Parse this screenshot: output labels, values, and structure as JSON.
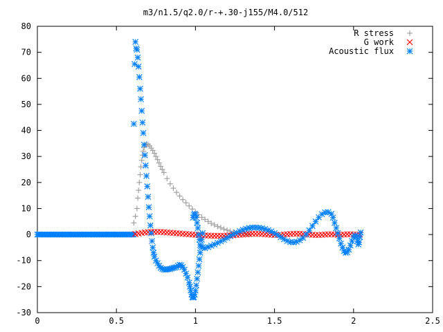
{
  "chart_data": {
    "type": "scatter",
    "title": "m3/n1.5/q2.0/r-+.30-j155/M4.0/512",
    "xlim": [
      0,
      2.5
    ],
    "ylim": [
      -30,
      80
    ],
    "xticks": [
      0,
      0.5,
      1,
      1.5,
      2,
      2.5
    ],
    "yticks": [
      -30,
      -20,
      -10,
      0,
      10,
      20,
      30,
      40,
      50,
      60,
      70,
      80
    ],
    "xtick_labels": [
      "0",
      "0.5",
      "1",
      "1.5",
      "2",
      "2.5"
    ],
    "ytick_labels": [
      "-30",
      "-20",
      "-10",
      "0",
      "10",
      "20",
      "30",
      "40",
      "50",
      "60",
      "70",
      "80"
    ],
    "grid": false,
    "legend_position": "top-right",
    "series": [
      {
        "name": "R stress",
        "marker": "plus",
        "color": "#a0a0a0",
        "points": [
          [
            0.61,
            4.5
          ],
          [
            0.62,
            7
          ],
          [
            0.63,
            10
          ],
          [
            0.635,
            14
          ],
          [
            0.64,
            17
          ],
          [
            0.645,
            20
          ],
          [
            0.65,
            23
          ],
          [
            0.655,
            26
          ],
          [
            0.66,
            28.5
          ],
          [
            0.665,
            30.5
          ],
          [
            0.67,
            32
          ],
          [
            0.675,
            33.5
          ],
          [
            0.68,
            34.3
          ],
          [
            0.69,
            34.8
          ],
          [
            0.7,
            34.6
          ],
          [
            0.71,
            34.0
          ],
          [
            0.72,
            33.2
          ],
          [
            0.73,
            32.3
          ],
          [
            0.74,
            31.2
          ],
          [
            0.75,
            30.0
          ],
          [
            0.76,
            28.8
          ],
          [
            0.77,
            27.5
          ],
          [
            0.78,
            26.2
          ],
          [
            0.79,
            25.0
          ],
          [
            0.8,
            23.8
          ],
          [
            0.82,
            21.5
          ],
          [
            0.84,
            19.5
          ],
          [
            0.86,
            17.8
          ],
          [
            0.88,
            16.2
          ],
          [
            0.9,
            14.8
          ],
          [
            0.92,
            13.4
          ],
          [
            0.94,
            12.2
          ],
          [
            0.96,
            11.0
          ],
          [
            0.98,
            9.8
          ],
          [
            1.0,
            8.6
          ],
          [
            1.02,
            7.6
          ],
          [
            1.04,
            6.6
          ],
          [
            1.06,
            5.8
          ],
          [
            1.08,
            5.0
          ],
          [
            1.1,
            4.3
          ],
          [
            1.12,
            3.7
          ],
          [
            1.14,
            3.1
          ],
          [
            1.16,
            2.6
          ],
          [
            1.18,
            2.1
          ],
          [
            1.2,
            1.7
          ],
          [
            1.22,
            1.3
          ],
          [
            1.24,
            1.0
          ],
          [
            1.26,
            0.7
          ],
          [
            1.28,
            0.5
          ],
          [
            1.3,
            0.3
          ],
          [
            1.32,
            0.2
          ],
          [
            1.34,
            0.1
          ]
        ]
      },
      {
        "name": "G work",
        "marker": "cross",
        "color": "#ff0000",
        "points": [
          [
            0.62,
            0.2
          ],
          [
            0.64,
            0.4
          ],
          [
            0.66,
            0.6
          ],
          [
            0.68,
            0.8
          ],
          [
            0.7,
            0.9
          ],
          [
            0.72,
            1.0
          ],
          [
            0.74,
            1.0
          ],
          [
            0.76,
            1.0
          ],
          [
            0.78,
            1.0
          ],
          [
            0.8,
            0.9
          ],
          [
            0.82,
            0.8
          ],
          [
            0.84,
            0.7
          ],
          [
            0.86,
            0.6
          ],
          [
            0.88,
            0.5
          ],
          [
            0.9,
            0.4
          ],
          [
            0.92,
            0.3
          ],
          [
            0.94,
            0.2
          ],
          [
            0.96,
            0.1
          ],
          [
            0.98,
            0.0
          ],
          [
            1.0,
            -0.1
          ],
          [
            1.02,
            -0.2
          ],
          [
            1.04,
            -0.3
          ],
          [
            1.06,
            -0.35
          ],
          [
            1.08,
            -0.4
          ],
          [
            1.1,
            -0.45
          ],
          [
            1.12,
            -0.5
          ],
          [
            1.14,
            -0.5
          ],
          [
            1.16,
            -0.5
          ],
          [
            1.18,
            -0.45
          ],
          [
            1.2,
            -0.4
          ],
          [
            1.22,
            -0.35
          ],
          [
            1.24,
            -0.3
          ],
          [
            1.26,
            -0.2
          ],
          [
            1.28,
            -0.1
          ],
          [
            1.3,
            0.0
          ],
          [
            1.32,
            0.1
          ],
          [
            1.34,
            0.2
          ],
          [
            1.36,
            0.3
          ],
          [
            1.38,
            0.3
          ],
          [
            1.4,
            0.3
          ],
          [
            1.42,
            0.2
          ],
          [
            1.44,
            0.1
          ],
          [
            1.46,
            0.0
          ],
          [
            1.48,
            -0.1
          ],
          [
            1.5,
            -0.2
          ],
          [
            1.52,
            -0.2
          ],
          [
            1.54,
            -0.1
          ],
          [
            1.56,
            0.0
          ],
          [
            1.58,
            0.1
          ],
          [
            1.6,
            0.2
          ],
          [
            1.62,
            0.3
          ],
          [
            1.64,
            0.3
          ],
          [
            1.66,
            0.3
          ],
          [
            1.68,
            0.2
          ],
          [
            1.7,
            0.1
          ],
          [
            1.72,
            0.0
          ],
          [
            1.74,
            -0.1
          ],
          [
            1.76,
            -0.2
          ],
          [
            1.78,
            -0.2
          ],
          [
            1.8,
            -0.1
          ],
          [
            1.82,
            0.0
          ],
          [
            1.84,
            0.1
          ],
          [
            1.86,
            0.1
          ],
          [
            1.88,
            0.0
          ],
          [
            1.9,
            -0.1
          ],
          [
            1.92,
            -0.1
          ],
          [
            1.94,
            0.0
          ],
          [
            1.96,
            0.1
          ],
          [
            1.98,
            0.1
          ],
          [
            2.0,
            0.0
          ],
          [
            2.02,
            0.0
          ],
          [
            2.04,
            0.0
          ]
        ]
      },
      {
        "name": "Acoustic flux",
        "marker": "star",
        "color": "#0080ff",
        "points": [
          [
            0.61,
            42.5
          ],
          [
            0.615,
            65.5
          ],
          [
            0.62,
            74.0
          ],
          [
            0.625,
            71.5
          ],
          [
            0.63,
            71.0
          ],
          [
            0.635,
            68.0
          ],
          [
            0.64,
            64.5
          ],
          [
            0.645,
            60.5
          ],
          [
            0.65,
            56.0
          ],
          [
            0.655,
            52.0
          ],
          [
            0.66,
            47.5
          ],
          [
            0.665,
            43.0
          ],
          [
            0.67,
            39.0
          ],
          [
            0.675,
            34.5
          ],
          [
            0.68,
            30.5
          ],
          [
            0.685,
            26.5
          ],
          [
            0.69,
            22.5
          ],
          [
            0.695,
            18.5
          ],
          [
            0.7,
            14.5
          ],
          [
            0.705,
            10.5
          ],
          [
            0.71,
            7.0
          ],
          [
            0.715,
            3.5
          ],
          [
            0.72,
            0.5
          ],
          [
            0.725,
            -2.5
          ],
          [
            0.73,
            -5.0
          ],
          [
            0.735,
            -7.0
          ],
          [
            0.74,
            -8.5
          ],
          [
            0.75,
            -10.0
          ],
          [
            0.76,
            -11.0
          ],
          [
            0.77,
            -12.0
          ],
          [
            0.78,
            -12.8
          ],
          [
            0.79,
            -13.2
          ],
          [
            0.8,
            -13.4
          ],
          [
            0.81,
            -13.5
          ],
          [
            0.82,
            -13.4
          ],
          [
            0.83,
            -13.3
          ],
          [
            0.84,
            -13.2
          ],
          [
            0.85,
            -13.0
          ],
          [
            0.86,
            -12.8
          ],
          [
            0.87,
            -12.7
          ],
          [
            0.88,
            -12.5
          ],
          [
            0.89,
            -12.0
          ],
          [
            0.9,
            -11.6
          ],
          [
            0.91,
            -11.8
          ],
          [
            0.92,
            -12.5
          ],
          [
            0.93,
            -13.5
          ],
          [
            0.94,
            -15.0
          ],
          [
            0.95,
            -16.5
          ],
          [
            0.96,
            -18.5
          ],
          [
            0.965,
            -20.0
          ],
          [
            0.97,
            -21.5
          ],
          [
            0.975,
            -23.0
          ],
          [
            0.98,
            -24.0
          ],
          [
            0.985,
            -24.2
          ],
          [
            0.99,
            -24.0
          ],
          [
            0.995,
            -23.0
          ],
          [
            1.0,
            -21.5
          ],
          [
            1.005,
            -19.5
          ],
          [
            1.01,
            -17.0
          ],
          [
            1.015,
            -14.5
          ],
          [
            1.02,
            -12.0
          ],
          [
            1.025,
            -9.5
          ],
          [
            1.03,
            -7.0
          ],
          [
            1.035,
            -4.5
          ],
          [
            1.04,
            -2.0
          ],
          [
            1.045,
            0.5
          ],
          [
            0.985,
            6.5
          ],
          [
            0.99,
            7.5
          ],
          [
            0.995,
            8.0
          ],
          [
            1.0,
            7.5
          ],
          [
            1.005,
            6.5
          ],
          [
            1.01,
            4.5
          ],
          [
            1.015,
            2.5
          ],
          [
            1.02,
            0.0
          ],
          [
            1.025,
            -2.0
          ],
          [
            1.03,
            -4.0
          ],
          [
            1.04,
            -5.0
          ],
          [
            1.06,
            -5.2
          ],
          [
            1.08,
            -4.8
          ],
          [
            1.1,
            -4.3
          ],
          [
            1.12,
            -3.8
          ],
          [
            1.14,
            -3.2
          ],
          [
            1.16,
            -2.6
          ],
          [
            1.18,
            -2.0
          ],
          [
            1.2,
            -1.3
          ],
          [
            1.22,
            -0.6
          ],
          [
            1.24,
            0.1
          ],
          [
            1.26,
            0.7
          ],
          [
            1.28,
            1.3
          ],
          [
            1.3,
            1.8
          ],
          [
            1.32,
            2.2
          ],
          [
            1.34,
            2.5
          ],
          [
            1.36,
            2.7
          ],
          [
            1.38,
            2.7
          ],
          [
            1.4,
            2.6
          ],
          [
            1.42,
            2.4
          ],
          [
            1.44,
            2.1
          ],
          [
            1.46,
            1.7
          ],
          [
            1.48,
            1.2
          ],
          [
            1.5,
            0.5
          ],
          [
            1.52,
            -0.2
          ],
          [
            1.54,
            -1.0
          ],
          [
            1.56,
            -1.8
          ],
          [
            1.58,
            -2.5
          ],
          [
            1.6,
            -2.9
          ],
          [
            1.62,
            -3.0
          ],
          [
            1.64,
            -2.8
          ],
          [
            1.66,
            -2.2
          ],
          [
            1.68,
            -1.3
          ],
          [
            1.7,
            0.0
          ],
          [
            1.72,
            1.6
          ],
          [
            1.74,
            3.3
          ],
          [
            1.76,
            5.0
          ],
          [
            1.78,
            6.6
          ],
          [
            1.8,
            7.8
          ],
          [
            1.82,
            8.5
          ],
          [
            1.84,
            8.6
          ],
          [
            1.86,
            7.9
          ],
          [
            1.87,
            6.5
          ],
          [
            1.88,
            4.5
          ],
          [
            1.89,
            2.5
          ],
          [
            1.9,
            0.5
          ],
          [
            1.91,
            -1.5
          ],
          [
            1.92,
            -3.5
          ],
          [
            1.93,
            -5.0
          ],
          [
            1.94,
            -6.3
          ],
          [
            1.95,
            -7.0
          ],
          [
            1.96,
            -6.8
          ],
          [
            1.97,
            -5.8
          ],
          [
            1.98,
            -4.2
          ],
          [
            1.99,
            -2.5
          ],
          [
            2.0,
            -1.0
          ],
          [
            2.01,
            -0.3
          ],
          [
            2.02,
            -1.0
          ],
          [
            2.025,
            -2.5
          ],
          [
            2.03,
            -3.8
          ],
          [
            2.035,
            -3.0
          ],
          [
            2.04,
            -1.0
          ],
          [
            2.045,
            0.8
          ]
        ]
      }
    ],
    "flat_baseline": {
      "series": "Acoustic flux",
      "x_range": [
        0.0,
        0.61
      ],
      "y": 0
    }
  }
}
